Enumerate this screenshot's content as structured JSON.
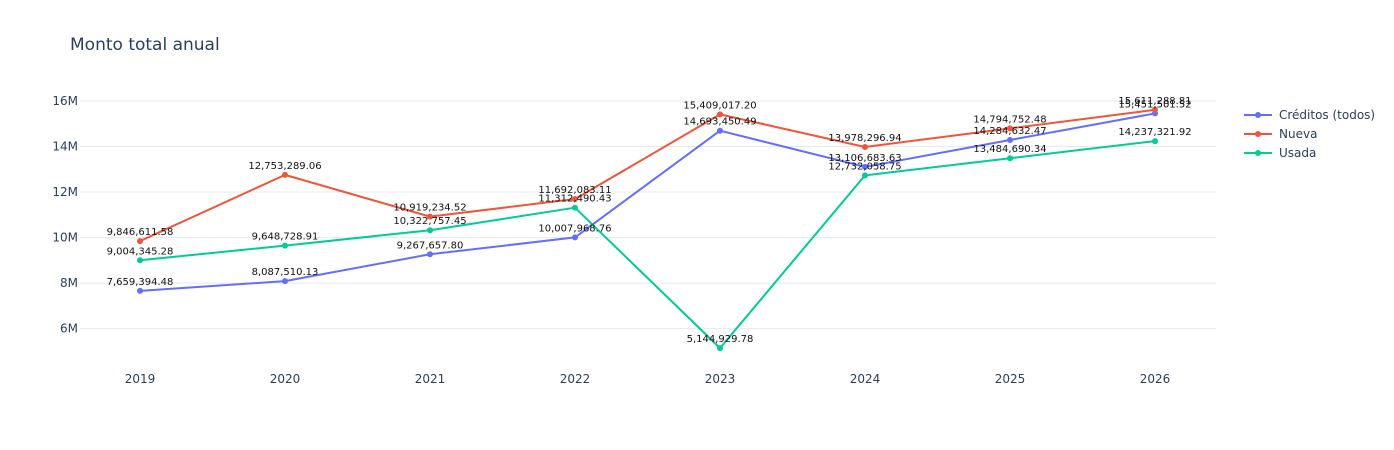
{
  "chart_data": {
    "type": "line",
    "title": "Monto total anual",
    "xlabel": "",
    "ylabel": "",
    "categories": [
      "2019",
      "2020",
      "2021",
      "2022",
      "2023",
      "2024",
      "2025",
      "2026"
    ],
    "y_ticks": [
      {
        "value": 6000000,
        "label": "6M"
      },
      {
        "value": 8000000,
        "label": "8M"
      },
      {
        "value": 10000000,
        "label": "10M"
      },
      {
        "value": 12000000,
        "label": "12M"
      },
      {
        "value": 14000000,
        "label": "14M"
      },
      {
        "value": 16000000,
        "label": "16M"
      }
    ],
    "ylim": [
      4800000,
      16700000
    ],
    "grid": true,
    "legend_position": "top-right",
    "series": [
      {
        "name": "Créditos (todos)",
        "color": "#636efa",
        "values": [
          7659394.48,
          8087510.13,
          9267657.8,
          10007968.76,
          14693450.49,
          13106683.63,
          14284632.47,
          15451501.52
        ],
        "labels": [
          "7,659,394.48",
          "8,087,510.13",
          "9,267,657.80",
          "10,007,968.76",
          "14,693,450.49",
          "13,106,683.63",
          "14,284,632.47",
          "15,451,501.52"
        ]
      },
      {
        "name": "Nueva",
        "color": "#ef553b",
        "values": [
          9846611.58,
          12753289.06,
          10919234.52,
          11692083.11,
          15409017.2,
          13978296.94,
          14794752.48,
          15611288.81
        ],
        "labels": [
          "9,846,611.58",
          "12,753,289.06",
          "10,919,234.52",
          "11,692,083.11",
          "15,409,017.20",
          "13,978,296.94",
          "14,794,752.48",
          "15,611,288.81"
        ]
      },
      {
        "name": "Usada",
        "color": "#00cc96",
        "values": [
          9004345.28,
          9648728.91,
          10322757.45,
          11312490.43,
          5144929.78,
          12732058.75,
          13484690.34,
          14237321.92
        ],
        "labels": [
          "9,004,345.28",
          "9,648,728.91",
          "10,322,757.45",
          "11,312,490.43",
          "5,144,929.78",
          "12,732,058.75",
          "13,484,690.34",
          "14,237,321.92"
        ]
      }
    ]
  }
}
